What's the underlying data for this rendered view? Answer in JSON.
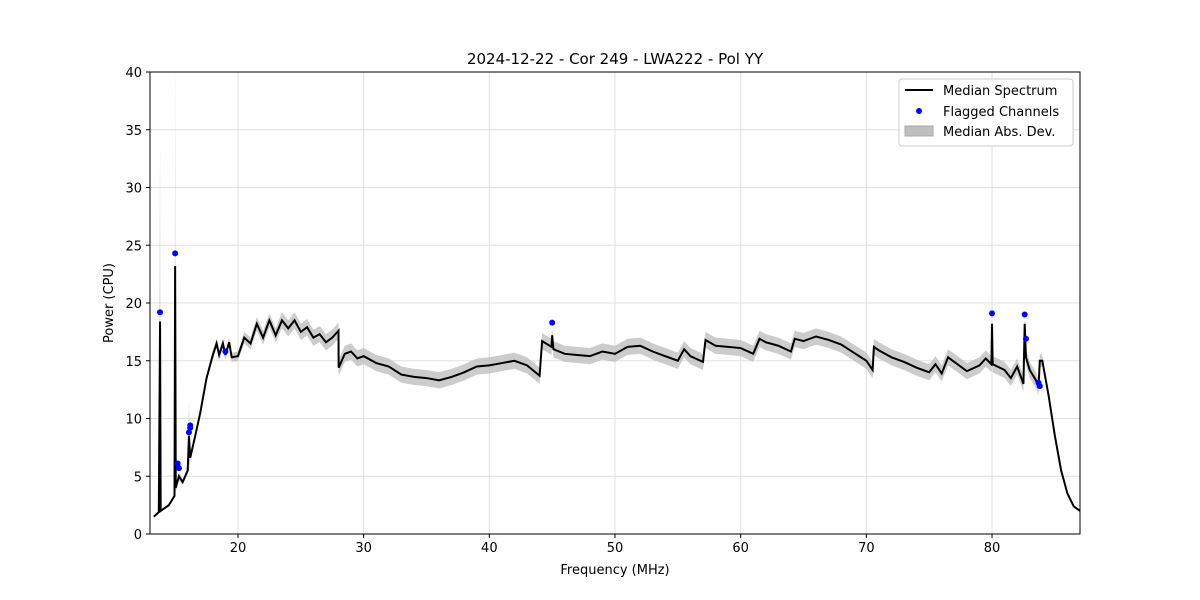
{
  "chart_data": {
    "type": "line",
    "title": "2024-12-22 - Cor 249 - LWA222 - Pol YY",
    "xlabel": "Frequency (MHz)",
    "ylabel": "Power (CPU)",
    "xlim": [
      13,
      87
    ],
    "ylim": [
      0,
      40
    ],
    "xticks": [
      20,
      30,
      40,
      50,
      60,
      70,
      80
    ],
    "yticks": [
      0,
      5,
      10,
      15,
      20,
      25,
      30,
      35,
      40
    ],
    "grid": true,
    "legend": {
      "placement": "top-right",
      "entries": [
        "Median Spectrum",
        "Flagged Channels",
        "Median Abs. Dev."
      ]
    },
    "colors": {
      "line": "#000000",
      "flagged": "#0000ff",
      "band": "#bfbfbf"
    },
    "median_spectrum": [
      [
        13.3,
        1.5,
        0.1
      ],
      [
        13.7,
        1.9,
        0.1
      ],
      [
        13.8,
        18.4,
        15.5
      ],
      [
        13.85,
        2.0,
        0.1
      ],
      [
        14.5,
        2.5,
        0.1
      ],
      [
        14.95,
        3.3,
        0.2
      ],
      [
        15.0,
        23.2,
        18
      ],
      [
        15.05,
        4.0,
        0.3
      ],
      [
        15.3,
        5.0,
        0.4
      ],
      [
        15.6,
        4.5,
        0.2
      ],
      [
        16.0,
        5.5,
        0.3
      ],
      [
        16.1,
        8.5,
        3
      ],
      [
        16.2,
        6.6,
        0.3
      ],
      [
        16.6,
        8.5,
        0.2
      ],
      [
        17.0,
        10.5,
        0.3
      ],
      [
        17.5,
        13.5,
        0.3
      ],
      [
        18.0,
        15.5,
        0.4
      ],
      [
        18.3,
        16.5,
        0.4
      ],
      [
        18.5,
        15.5,
        0.4
      ],
      [
        18.8,
        16.5,
        0.4
      ],
      [
        19.0,
        15.5,
        0.4
      ],
      [
        19.3,
        16.6,
        0.4
      ],
      [
        19.5,
        15.3,
        0.4
      ],
      [
        20.0,
        15.4,
        0.4
      ],
      [
        20.5,
        17.0,
        0.5
      ],
      [
        21.0,
        16.5,
        0.5
      ],
      [
        21.5,
        18.2,
        0.6
      ],
      [
        22.0,
        17.0,
        0.6
      ],
      [
        22.5,
        18.5,
        0.6
      ],
      [
        23.0,
        17.2,
        0.6
      ],
      [
        23.5,
        18.5,
        0.7
      ],
      [
        24.0,
        17.8,
        0.7
      ],
      [
        24.5,
        18.5,
        0.7
      ],
      [
        25.0,
        17.5,
        0.7
      ],
      [
        25.5,
        17.9,
        0.7
      ],
      [
        26.0,
        17.0,
        0.7
      ],
      [
        26.5,
        17.3,
        0.7
      ],
      [
        27.0,
        16.6,
        0.7
      ],
      [
        27.5,
        17.0,
        0.7
      ],
      [
        28.0,
        17.6,
        0.7
      ],
      [
        28.01,
        14.4,
        0.7
      ],
      [
        28.5,
        15.6,
        0.7
      ],
      [
        29.0,
        15.8,
        0.7
      ],
      [
        29.5,
        15.2,
        0.7
      ],
      [
        30.0,
        15.4,
        0.7
      ],
      [
        31.0,
        14.8,
        0.7
      ],
      [
        32.0,
        14.5,
        0.7
      ],
      [
        33.0,
        13.8,
        0.7
      ],
      [
        34.0,
        13.6,
        0.7
      ],
      [
        35.0,
        13.5,
        0.7
      ],
      [
        36.0,
        13.3,
        0.7
      ],
      [
        37.0,
        13.6,
        0.7
      ],
      [
        38.0,
        14.0,
        0.7
      ],
      [
        39.0,
        14.5,
        0.7
      ],
      [
        40.0,
        14.6,
        0.7
      ],
      [
        41.0,
        14.8,
        0.7
      ],
      [
        42.0,
        15.0,
        0.7
      ],
      [
        43.0,
        14.6,
        0.7
      ],
      [
        44.0,
        13.7,
        0.7
      ],
      [
        44.2,
        16.7,
        0.7
      ],
      [
        44.95,
        16.2,
        0.7
      ],
      [
        45.0,
        17.2,
        0.7
      ],
      [
        45.1,
        16.0,
        0.7
      ],
      [
        46.0,
        15.6,
        0.7
      ],
      [
        47.0,
        15.5,
        0.7
      ],
      [
        48.0,
        15.4,
        0.7
      ],
      [
        49.0,
        15.8,
        0.7
      ],
      [
        50.0,
        15.6,
        0.7
      ],
      [
        51.0,
        16.2,
        0.7
      ],
      [
        52.0,
        16.3,
        0.7
      ],
      [
        53.0,
        15.8,
        0.7
      ],
      [
        54.0,
        15.4,
        0.7
      ],
      [
        55.0,
        15.0,
        0.7
      ],
      [
        55.5,
        16.0,
        0.7
      ],
      [
        56.0,
        15.4,
        0.7
      ],
      [
        57.0,
        14.9,
        0.7
      ],
      [
        57.2,
        16.8,
        0.7
      ],
      [
        58.0,
        16.3,
        0.7
      ],
      [
        59.0,
        16.2,
        0.7
      ],
      [
        60.0,
        16.1,
        0.7
      ],
      [
        61.0,
        15.6,
        0.7
      ],
      [
        61.5,
        16.9,
        0.7
      ],
      [
        62.0,
        16.6,
        0.7
      ],
      [
        63.0,
        16.3,
        0.7
      ],
      [
        64.0,
        15.8,
        0.7
      ],
      [
        64.3,
        16.9,
        0.7
      ],
      [
        65.0,
        16.7,
        0.7
      ],
      [
        66.0,
        17.1,
        0.7
      ],
      [
        67.0,
        16.8,
        0.7
      ],
      [
        68.0,
        16.4,
        0.7
      ],
      [
        69.0,
        15.7,
        0.7
      ],
      [
        70.0,
        15.0,
        0.7
      ],
      [
        70.5,
        14.2,
        0.7
      ],
      [
        70.6,
        16.2,
        0.7
      ],
      [
        71.0,
        15.9,
        0.7
      ],
      [
        72.0,
        15.3,
        0.7
      ],
      [
        73.0,
        14.9,
        0.7
      ],
      [
        74.0,
        14.4,
        0.7
      ],
      [
        75.0,
        14.0,
        0.7
      ],
      [
        75.5,
        14.7,
        0.7
      ],
      [
        76.0,
        13.9,
        0.7
      ],
      [
        76.5,
        15.3,
        0.7
      ],
      [
        77.0,
        14.9,
        0.7
      ],
      [
        78.0,
        14.1,
        0.7
      ],
      [
        79.0,
        14.6,
        0.7
      ],
      [
        79.5,
        15.2,
        0.7
      ],
      [
        79.95,
        14.7,
        0.7
      ],
      [
        80.0,
        18.2,
        0.7
      ],
      [
        80.05,
        14.7,
        0.7
      ],
      [
        81.0,
        14.2,
        0.7
      ],
      [
        81.5,
        13.5,
        0.7
      ],
      [
        82.0,
        14.5,
        0.7
      ],
      [
        82.5,
        13.0,
        0.7
      ],
      [
        82.6,
        18.2,
        0.7
      ],
      [
        82.7,
        15.3,
        0.7
      ],
      [
        83.0,
        14.2,
        0.7
      ],
      [
        83.5,
        13.3,
        0.7
      ],
      [
        83.7,
        12.7,
        0.7
      ],
      [
        83.8,
        15.0,
        0.6
      ],
      [
        84.0,
        15.0,
        0.5
      ],
      [
        84.5,
        12.0,
        0.2
      ],
      [
        85.0,
        8.5,
        0.1
      ],
      [
        85.5,
        5.5,
        0.1
      ],
      [
        86.0,
        3.5,
        0.1
      ],
      [
        86.5,
        2.4,
        0.1
      ],
      [
        87.0,
        2.0,
        0.1
      ]
    ],
    "flagged_channels": [
      [
        13.8,
        19.2
      ],
      [
        15.0,
        24.3
      ],
      [
        15.2,
        6.1
      ],
      [
        15.3,
        5.7
      ],
      [
        16.1,
        8.8
      ],
      [
        16.2,
        9.2
      ],
      [
        16.2,
        9.4
      ],
      [
        19.0,
        15.8
      ],
      [
        45.0,
        18.3
      ],
      [
        80.0,
        19.1
      ],
      [
        82.6,
        19.0
      ],
      [
        82.7,
        16.9
      ],
      [
        83.7,
        13.1
      ],
      [
        83.8,
        12.8
      ]
    ]
  }
}
